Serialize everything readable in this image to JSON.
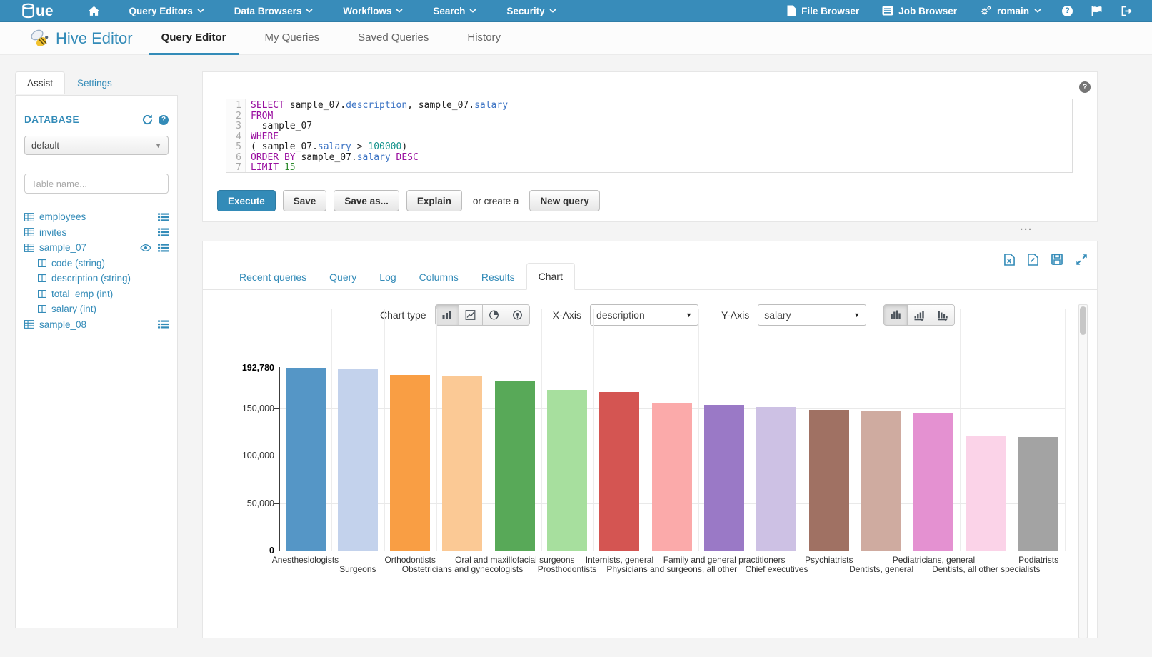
{
  "topnav": {
    "logo_text": "ue",
    "items": [
      {
        "label": "Query Editors",
        "caret": true
      },
      {
        "label": "Data Browsers",
        "caret": true
      },
      {
        "label": "Workflows",
        "caret": true
      },
      {
        "label": "Search",
        "caret": true
      },
      {
        "label": "Security",
        "caret": true
      }
    ],
    "right_items": [
      {
        "icon": "file",
        "label": "File Browser"
      },
      {
        "icon": "list-alt",
        "label": "Job Browser"
      },
      {
        "icon": "gears",
        "label": "romain",
        "caret": true
      }
    ],
    "icon_buttons": [
      "help",
      "flag",
      "logout"
    ]
  },
  "app_header": {
    "title": "Hive Editor",
    "tabs": [
      {
        "label": "Query Editor",
        "active": true
      },
      {
        "label": "My Queries",
        "active": false
      },
      {
        "label": "Saved Queries",
        "active": false
      },
      {
        "label": "History",
        "active": false
      }
    ]
  },
  "sidebar": {
    "tabs": [
      {
        "label": "Assist",
        "active": true
      },
      {
        "label": "Settings",
        "active": false
      }
    ],
    "database_label": "DATABASE",
    "database_value": "default",
    "table_filter_placeholder": "Table name...",
    "tables": [
      {
        "name": "employees",
        "icons": [
          "list"
        ]
      },
      {
        "name": "invites",
        "icons": [
          "list"
        ]
      },
      {
        "name": "sample_07",
        "icons": [
          "eye",
          "list"
        ],
        "columns": [
          "code (string)",
          "description (string)",
          "total_emp (int)",
          "salary (int)"
        ]
      },
      {
        "name": "sample_08",
        "icons": [
          "list"
        ]
      }
    ]
  },
  "query_editor": {
    "lines": [
      [
        {
          "c": "kw",
          "t": "SELECT"
        },
        {
          "c": "pl",
          "t": " sample_07."
        },
        {
          "c": "id",
          "t": "description"
        },
        {
          "c": "pl",
          "t": ", sample_07."
        },
        {
          "c": "id",
          "t": "salary"
        }
      ],
      [
        {
          "c": "kw",
          "t": "FROM"
        }
      ],
      [
        {
          "c": "pl",
          "t": "  sample_07"
        }
      ],
      [
        {
          "c": "kw",
          "t": "WHERE"
        }
      ],
      [
        {
          "c": "pl",
          "t": "( sample_07."
        },
        {
          "c": "id",
          "t": "salary"
        },
        {
          "c": "pl",
          "t": " > "
        },
        {
          "c": "num",
          "t": "100000"
        },
        {
          "c": "pl",
          "t": ")"
        }
      ],
      [
        {
          "c": "kw",
          "t": "ORDER BY"
        },
        {
          "c": "pl",
          "t": " sample_07."
        },
        {
          "c": "id",
          "t": "salary"
        },
        {
          "c": "kw",
          "t": " DESC"
        }
      ],
      [
        {
          "c": "kw",
          "t": "LIMIT"
        },
        {
          "c": "num2",
          "t": " 15"
        }
      ]
    ],
    "buttons": {
      "execute": "Execute",
      "save": "Save",
      "save_as": "Save as...",
      "explain": "Explain",
      "or_create": "or create a",
      "new_query": "New query"
    }
  },
  "results": {
    "tabs": [
      {
        "label": "Recent queries",
        "active": false
      },
      {
        "label": "Query",
        "active": false
      },
      {
        "label": "Log",
        "active": false
      },
      {
        "label": "Columns",
        "active": false
      },
      {
        "label": "Results",
        "active": false
      },
      {
        "label": "Chart",
        "active": true
      }
    ],
    "export_icons": [
      "excel",
      "document",
      "save",
      "expand"
    ],
    "controls": {
      "chart_type_label": "Chart type",
      "chart_types": [
        "bar",
        "line",
        "pie",
        "map"
      ],
      "active_chart_type": "bar",
      "x_axis_label": "X-Axis",
      "x_axis_value": "description",
      "y_axis_label": "Y-Axis",
      "y_axis_value": "salary",
      "sorting": [
        "none",
        "asc",
        "desc"
      ],
      "active_sorting": "none"
    }
  },
  "chart_data": {
    "type": "bar",
    "title": "",
    "xlabel": "description",
    "ylabel": "salary",
    "grid": true,
    "legend": "none",
    "ylim": [
      0,
      192780
    ],
    "y_ticks": [
      {
        "v": 192780,
        "label": "192,780",
        "bold": true
      },
      {
        "v": 150000,
        "label": "150,000",
        "bold": false
      },
      {
        "v": 100000,
        "label": "100,000",
        "bold": false
      },
      {
        "v": 50000,
        "label": "50,000",
        "bold": false
      },
      {
        "v": 0,
        "label": "0",
        "bold": true
      }
    ],
    "categories": [
      "Anesthesiologists",
      "Surgeons",
      "Orthodontists",
      "Obstetricians and gynecologists",
      "Oral and maxillofacial surgeons",
      "Prosthodontists",
      "Internists, general",
      "Physicians and surgeons, all other",
      "Family and general practitioners",
      "Chief executives",
      "Psychiatrists",
      "Dentists, general",
      "Pediatricians, general",
      "Dentists, all other specialists",
      "Podiatrists"
    ],
    "values": [
      192780,
      191410,
      185340,
      183600,
      178440,
      169810,
      167270,
      155150,
      153640,
      151370,
      148000,
      147000,
      145200,
      121200,
      120000
    ],
    "colors": [
      "#5596c6",
      "#c3d2ec",
      "#f99e44",
      "#fbc995",
      "#58a958",
      "#a7df9e",
      "#d45552",
      "#fbaaaa",
      "#9a79c6",
      "#cdc1e4",
      "#a07163",
      "#cfaba0",
      "#e491d1",
      "#fbd3e8",
      "#a3a3a3"
    ]
  }
}
